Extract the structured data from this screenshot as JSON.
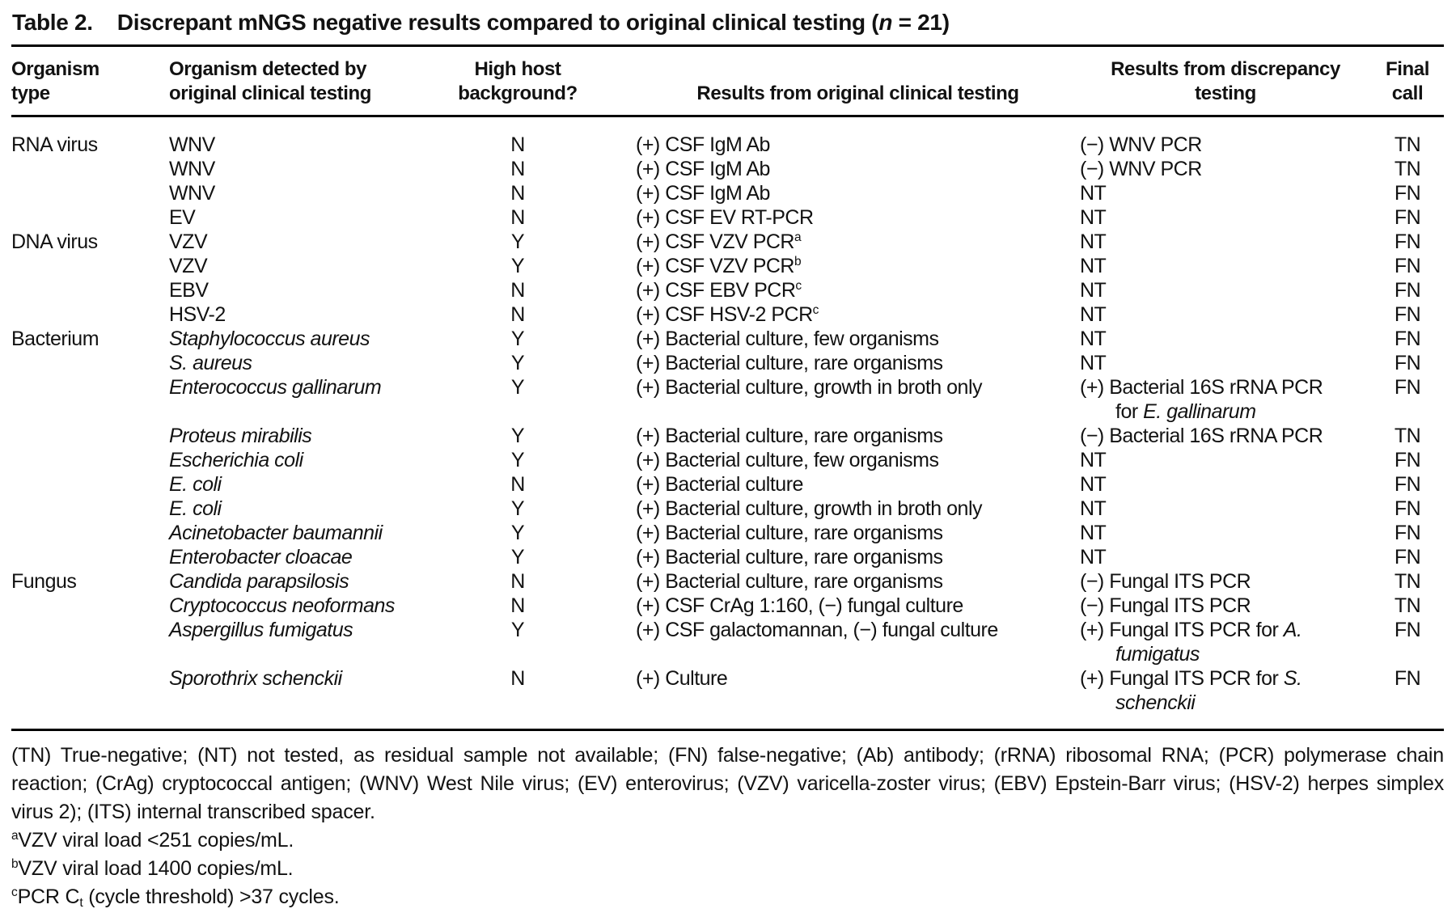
{
  "title": {
    "label": "Table 2.",
    "text": "Discrepant mNGS negative results compared to original clinical testing (",
    "n_italic": "n",
    "text_after": " = 21)"
  },
  "table": {
    "columns": {
      "c1": {
        "line1": "Organism",
        "line2": "type"
      },
      "c2": {
        "line1": "Organism detected by",
        "line2": "original clinical testing"
      },
      "c3": {
        "line1": "High host",
        "line2": "background?"
      },
      "c4": {
        "line1": "Results from original clinical testing"
      },
      "c5": {
        "line1": "Results from discrepancy",
        "line2": "testing"
      },
      "c6": {
        "line1": "Final",
        "line2": "call"
      }
    },
    "rows": [
      {
        "organism_type": "RNA virus",
        "organism_detected": "WNV",
        "organism_italic": false,
        "high_host_background": "N",
        "results_original": {
          "text": "(+) CSF IgM Ab"
        },
        "results_discrepancy": {
          "line1": {
            "text": "(−) WNV PCR"
          }
        },
        "final_call": "TN"
      },
      {
        "organism_type": "",
        "organism_detected": "WNV",
        "organism_italic": false,
        "high_host_background": "N",
        "results_original": {
          "text": "(+) CSF IgM Ab"
        },
        "results_discrepancy": {
          "line1": {
            "text": "(−) WNV PCR"
          }
        },
        "final_call": "TN"
      },
      {
        "organism_type": "",
        "organism_detected": "WNV",
        "organism_italic": false,
        "high_host_background": "N",
        "results_original": {
          "text": "(+) CSF IgM Ab"
        },
        "results_discrepancy": {
          "line1": {
            "text": "NT"
          }
        },
        "final_call": "FN"
      },
      {
        "organism_type": "",
        "organism_detected": "EV",
        "organism_italic": false,
        "high_host_background": "N",
        "results_original": {
          "text": "(+) CSF EV RT-PCR"
        },
        "results_discrepancy": {
          "line1": {
            "text": "NT"
          }
        },
        "final_call": "FN"
      },
      {
        "organism_type": "DNA virus",
        "organism_detected": "VZV",
        "organism_italic": false,
        "high_host_background": "Y",
        "results_original": {
          "text": "(+) CSF VZV PCR",
          "sup": "a"
        },
        "results_discrepancy": {
          "line1": {
            "text": "NT"
          }
        },
        "final_call": "FN"
      },
      {
        "organism_type": "",
        "organism_detected": "VZV",
        "organism_italic": false,
        "high_host_background": "Y",
        "results_original": {
          "text": "(+) CSF VZV PCR",
          "sup": "b"
        },
        "results_discrepancy": {
          "line1": {
            "text": "NT"
          }
        },
        "final_call": "FN"
      },
      {
        "organism_type": "",
        "organism_detected": "EBV",
        "organism_italic": false,
        "high_host_background": "N",
        "results_original": {
          "text": "(+) CSF EBV PCR",
          "sup": "c"
        },
        "results_discrepancy": {
          "line1": {
            "text": "NT"
          }
        },
        "final_call": "FN"
      },
      {
        "organism_type": "",
        "organism_detected": "HSV-2",
        "organism_italic": false,
        "high_host_background": "N",
        "results_original": {
          "text": "(+) CSF HSV-2 PCR",
          "sup": "c"
        },
        "results_discrepancy": {
          "line1": {
            "text": "NT"
          }
        },
        "final_call": "FN"
      },
      {
        "organism_type": "Bacterium",
        "organism_detected": "Staphylococcus aureus",
        "organism_italic": true,
        "high_host_background": "Y",
        "results_original": {
          "text": "(+) Bacterial culture, few organisms"
        },
        "results_discrepancy": {
          "line1": {
            "text": "NT"
          }
        },
        "final_call": "FN"
      },
      {
        "organism_type": "",
        "organism_detected": "S. aureus",
        "organism_italic": true,
        "high_host_background": "Y",
        "results_original": {
          "text": "(+) Bacterial culture, rare organisms"
        },
        "results_discrepancy": {
          "line1": {
            "text": "NT"
          }
        },
        "final_call": "FN"
      },
      {
        "organism_type": "",
        "organism_detected": "Enterococcus gallinarum",
        "organism_italic": true,
        "high_host_background": "Y",
        "results_original": {
          "text": "(+) Bacterial culture, growth in broth only"
        },
        "results_discrepancy": {
          "line1": {
            "text": "(+) Bacterial 16S rRNA PCR"
          },
          "line2": {
            "text": "for ",
            "italic": "E. gallinarum"
          }
        },
        "final_call": "FN"
      },
      {
        "organism_type": "",
        "organism_detected": "Proteus mirabilis",
        "organism_italic": true,
        "high_host_background": "Y",
        "results_original": {
          "text": "(+) Bacterial culture, rare organisms"
        },
        "results_discrepancy": {
          "line1": {
            "text": "(−) Bacterial 16S rRNA PCR"
          }
        },
        "final_call": "TN"
      },
      {
        "organism_type": "",
        "organism_detected": "Escherichia coli",
        "organism_italic": true,
        "high_host_background": "Y",
        "results_original": {
          "text": "(+) Bacterial culture, few organisms"
        },
        "results_discrepancy": {
          "line1": {
            "text": "NT"
          }
        },
        "final_call": "FN"
      },
      {
        "organism_type": "",
        "organism_detected": "E. coli",
        "organism_italic": true,
        "high_host_background": "N",
        "results_original": {
          "text": "(+) Bacterial culture"
        },
        "results_discrepancy": {
          "line1": {
            "text": "NT"
          }
        },
        "final_call": "FN"
      },
      {
        "organism_type": "",
        "organism_detected": "E. coli",
        "organism_italic": true,
        "high_host_background": "Y",
        "results_original": {
          "text": "(+) Bacterial culture, growth in broth only"
        },
        "results_discrepancy": {
          "line1": {
            "text": "NT"
          }
        },
        "final_call": "FN"
      },
      {
        "organism_type": "",
        "organism_detected": "Acinetobacter baumannii",
        "organism_italic": true,
        "high_host_background": "Y",
        "results_original": {
          "text": "(+) Bacterial culture, rare organisms"
        },
        "results_discrepancy": {
          "line1": {
            "text": "NT"
          }
        },
        "final_call": "FN"
      },
      {
        "organism_type": "",
        "organism_detected": "Enterobacter cloacae",
        "organism_italic": true,
        "high_host_background": "Y",
        "results_original": {
          "text": "(+) Bacterial culture, rare organisms"
        },
        "results_discrepancy": {
          "line1": {
            "text": "NT"
          }
        },
        "final_call": "FN"
      },
      {
        "organism_type": "Fungus",
        "organism_detected": "Candida parapsilosis",
        "organism_italic": true,
        "high_host_background": "N",
        "results_original": {
          "text": "(+) Bacterial culture, rare organisms"
        },
        "results_discrepancy": {
          "line1": {
            "text": "(−) Fungal ITS PCR"
          }
        },
        "final_call": "TN"
      },
      {
        "organism_type": "",
        "organism_detected": "Cryptococcus neoformans",
        "organism_italic": true,
        "high_host_background": "N",
        "results_original": {
          "text": "(+) CSF CrAg 1:160, (−) fungal culture"
        },
        "results_discrepancy": {
          "line1": {
            "text": "(−) Fungal ITS PCR"
          }
        },
        "final_call": "TN"
      },
      {
        "organism_type": "",
        "organism_detected": "Aspergillus fumigatus",
        "organism_italic": true,
        "high_host_background": "Y",
        "results_original": {
          "text": "(+) CSF galactomannan, (−) fungal culture"
        },
        "results_discrepancy": {
          "line1": {
            "text": "(+) Fungal ITS PCR for ",
            "italic": "A."
          },
          "line2": {
            "text": "",
            "italic": "fumigatus"
          }
        },
        "final_call": "FN"
      },
      {
        "organism_type": "",
        "organism_detected": "Sporothrix schenckii",
        "organism_italic": true,
        "high_host_background": "N",
        "results_original": {
          "text": "(+) Culture"
        },
        "results_discrepancy": {
          "line1": {
            "text": "(+) Fungal ITS PCR for ",
            "italic": "S."
          },
          "line2": {
            "text": "",
            "italic": "schenckii"
          }
        },
        "final_call": "FN"
      }
    ]
  },
  "footnotes": {
    "abbreviations": "(TN) True-negative; (NT) not tested, as residual sample not available; (FN) false-negative; (Ab) antibody; (rRNA) ribosomal RNA; (PCR) polymerase chain reaction; (CrAg) cryptococcal antigen; (WNV) West Nile virus; (EV) enterovirus; (VZV) varicella-zoster virus; (EBV) Epstein-Barr virus; (HSV-2) herpes simplex virus 2); (ITS) internal transcribed spacer.",
    "a": {
      "sup": "a",
      "text": "VZV viral load <251 copies/mL."
    },
    "b": {
      "sup": "b",
      "text": "VZV viral load 1400 copies/mL."
    },
    "c": {
      "sup": "c",
      "text1": "PCR C",
      "sub": "t",
      "text2": " (cycle threshold) >37 cycles."
    }
  },
  "colors": {
    "background": "#ffffff",
    "text": "#121212",
    "rule": "#000000"
  }
}
